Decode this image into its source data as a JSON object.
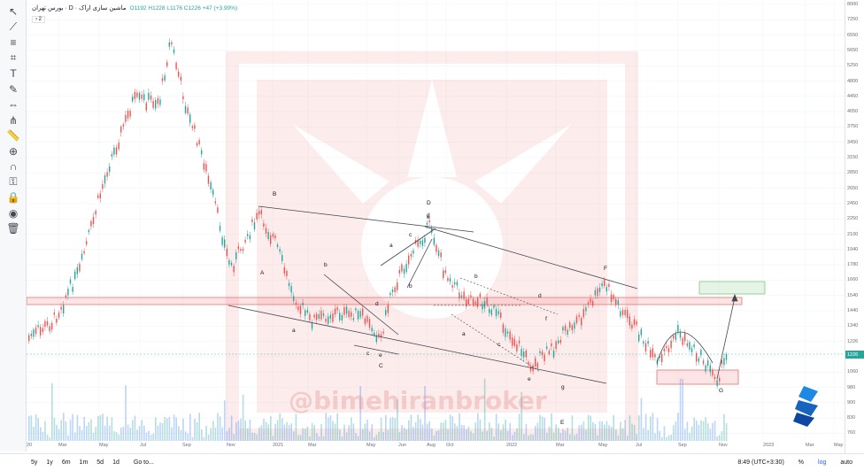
{
  "header": {
    "title": "بورس تهران · D · ماشین سازی اراک",
    "ohlc": "O1192 H1228 L1176 C1226 +47 (+3.99%)",
    "collapse": "› 2"
  },
  "toolbar": {
    "items": [
      "cursor-icon",
      "trend-line-icon",
      "fib-icon",
      "pattern-icon",
      "text-icon",
      "brush-icon",
      "measure-icon",
      "pitchfork-icon",
      "ruler-icon",
      "zoom-icon",
      "magnet-icon",
      "lock-drawings-icon",
      "lock-icon",
      "eye-icon",
      "trash-icon"
    ]
  },
  "price_axis": [
    "8000",
    "7250",
    "6550",
    "5650",
    "5250",
    "4800",
    "4450",
    "4050",
    "3750",
    "3450",
    "3150",
    "2850",
    "2650",
    "2450",
    "2250",
    "2100",
    "1940",
    "1780",
    "1660",
    "1540",
    "1440",
    "1340",
    "1226",
    "1140",
    "1060",
    "980",
    "900",
    "830",
    "760"
  ],
  "current_price": "1226",
  "time_axis": [
    "20",
    "Mar",
    "May",
    "Jul",
    "Sep",
    "Nov",
    "2021",
    "Mar",
    "May",
    "Jun",
    "Aug",
    "Oct",
    "2022",
    "Mar",
    "May",
    "Jul",
    "Sep",
    "Nov",
    "2023",
    "Mar",
    "May"
  ],
  "wave_labels": [
    "A",
    "B",
    "a",
    "b",
    "c",
    "d",
    "e",
    "C",
    "D",
    "a",
    "b",
    "c",
    "d",
    "e",
    "E",
    "F",
    "a",
    "b",
    "c",
    "d",
    "e",
    "f",
    "g",
    "G"
  ],
  "watermark": "@bimehiranbroker",
  "bottom_bar": {
    "ranges": [
      "5y",
      "1y",
      "6m",
      "1m",
      "5d",
      "1d"
    ],
    "goto": "Go to...",
    "time": "8:49 (UTC+3:30)",
    "pct": "%",
    "log": "log",
    "auto": "auto"
  },
  "colors": {
    "up": "#26a69a",
    "down": "#ef5350",
    "zone": "#e57373",
    "target": "#81c784"
  }
}
